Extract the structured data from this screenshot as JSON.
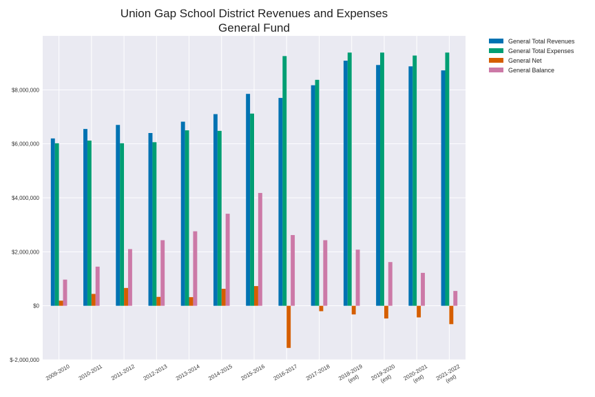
{
  "chart_data": {
    "type": "bar",
    "title": "Union Gap School District Revenues and Expenses",
    "subtitle": "General Fund",
    "xlabel": "",
    "ylabel": "",
    "categories": [
      "2009-2010",
      "2010-2011",
      "2011-2012",
      "2012-2013",
      "2013-2014",
      "2014-2015",
      "2015-2016",
      "2016-2017",
      "2017-2018",
      "2018-2019\n(est)",
      "2019-2020\n(est)",
      "2020-2021\n(est)",
      "2021-2022\n(est)"
    ],
    "ylim": [
      -2000000,
      10000000
    ],
    "yticks": [
      -2000000,
      0,
      2000000,
      4000000,
      6000000,
      8000000
    ],
    "ytick_labels": [
      "$-2,000,000",
      "$0",
      "$2,000,000",
      "$4,000,000",
      "$6,000,000",
      "$8,000,000"
    ],
    "grid": true,
    "legend_position": "outside-top-right",
    "series": [
      {
        "name": "General Total Revenues",
        "color": "#0072b2",
        "values": [
          6200000,
          6550000,
          6700000,
          6400000,
          6820000,
          7100000,
          7850000,
          7700000,
          8170000,
          9080000,
          8920000,
          8870000,
          8720000
        ]
      },
      {
        "name": "General Total Expenses",
        "color": "#009e73",
        "values": [
          6020000,
          6120000,
          6020000,
          6060000,
          6500000,
          6480000,
          7120000,
          9250000,
          8370000,
          9380000,
          9380000,
          9270000,
          9380000
        ]
      },
      {
        "name": "General Net",
        "color": "#d55e00",
        "values": [
          190000,
          440000,
          660000,
          330000,
          320000,
          630000,
          730000,
          -1560000,
          -200000,
          -320000,
          -470000,
          -430000,
          -680000
        ]
      },
      {
        "name": "General Balance",
        "color": "#cc79a7",
        "values": [
          970000,
          1450000,
          2100000,
          2430000,
          2760000,
          3410000,
          4180000,
          2620000,
          2430000,
          2080000,
          1620000,
          1220000,
          550000
        ]
      }
    ]
  }
}
